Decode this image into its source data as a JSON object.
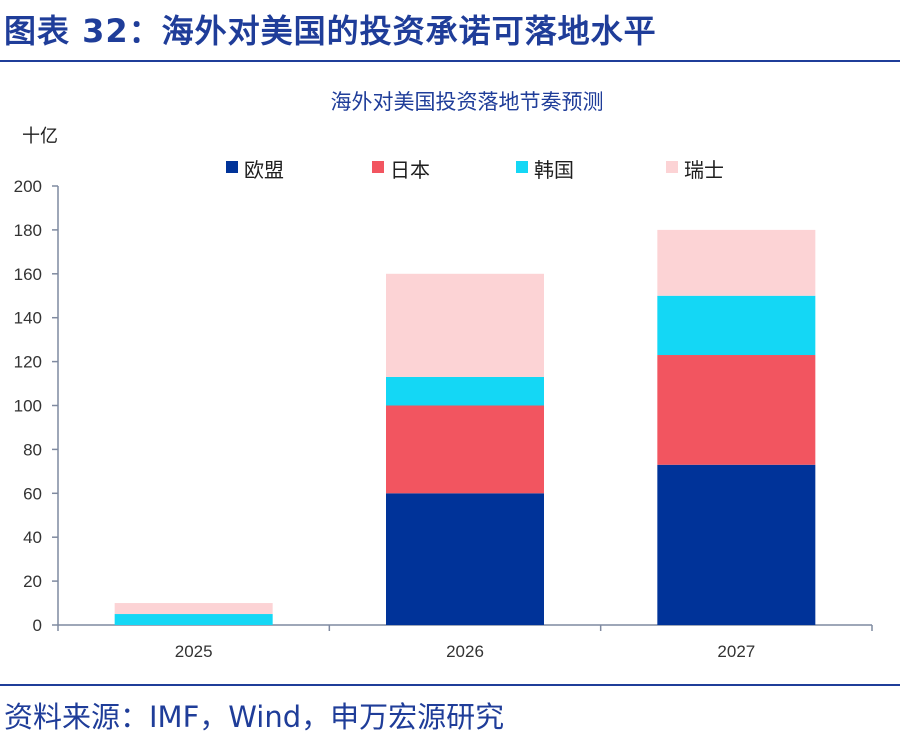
{
  "figure_title": "图表 32：海外对美国的投资承诺可落地水平",
  "source": "资料来源：IMF，Wind，申万宏源研究",
  "chart_data": {
    "type": "bar",
    "stacked": true,
    "title": "海外对美国投资落地节奏预测",
    "ylabel": "十亿",
    "xlabel": "",
    "ylim": [
      0,
      200
    ],
    "yticks": [
      0,
      20,
      40,
      60,
      80,
      100,
      120,
      140,
      160,
      180,
      200
    ],
    "categories": [
      "2025",
      "2026",
      "2027"
    ],
    "legend_position": "top",
    "series": [
      {
        "name": "欧盟",
        "color": "#003399",
        "values": [
          0,
          60,
          73
        ]
      },
      {
        "name": "日本",
        "color": "#f25560",
        "values": [
          0,
          40,
          50
        ]
      },
      {
        "name": "韩国",
        "color": "#14d7f5",
        "values": [
          5,
          13,
          27
        ]
      },
      {
        "name": "瑞士",
        "color": "#fcd3d5",
        "values": [
          5,
          47,
          30
        ]
      }
    ]
  }
}
